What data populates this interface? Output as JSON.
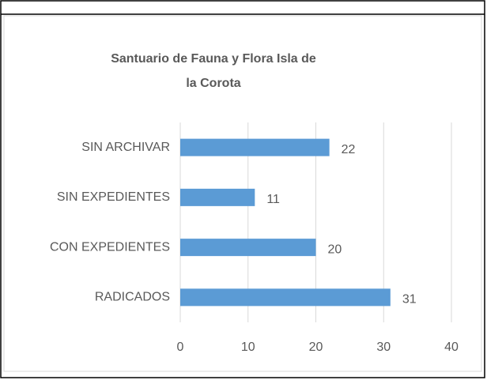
{
  "chart_data": {
    "type": "bar",
    "orientation": "horizontal",
    "title": [
      "Santuario de Fauna y Flora Isla de",
      "la Corota"
    ],
    "categories": [
      "SIN ARCHIVAR",
      "SIN EXPEDIENTES",
      "CON EXPEDIENTES",
      "RADICADOS"
    ],
    "values": [
      22,
      11,
      20,
      31
    ],
    "color": "#5b9bd5",
    "xlim": [
      0,
      40
    ],
    "xticks": [
      0,
      10,
      20,
      30,
      40
    ],
    "grid": true
  }
}
